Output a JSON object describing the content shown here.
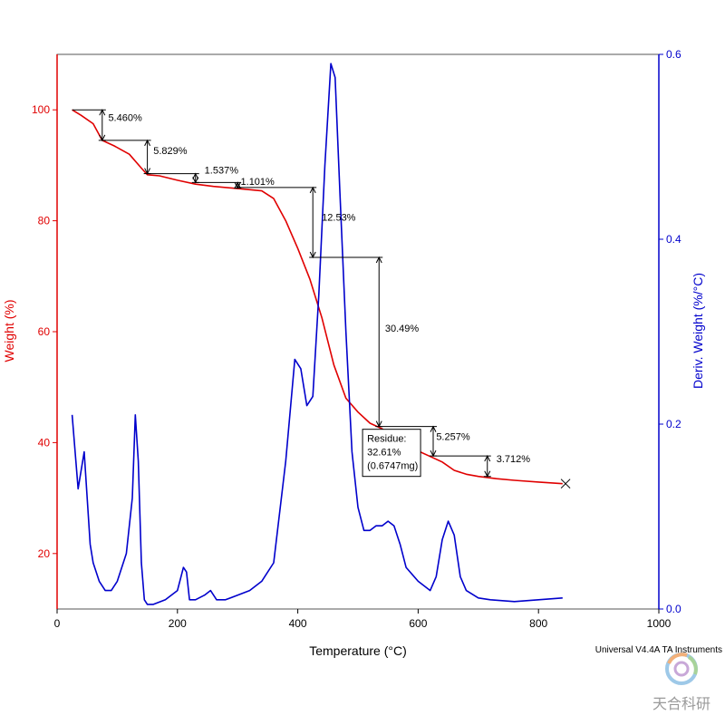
{
  "chart_data": {
    "type": "line",
    "xlabel": "Temperature (°C)",
    "ylabel_left": "Weight (%)",
    "ylabel_right": "Deriv. Weight (%/°C)",
    "xlim": [
      0,
      1000
    ],
    "ylim_left": [
      10,
      110
    ],
    "ylim_right": [
      0.0,
      0.6
    ],
    "x_ticks": [
      0,
      200,
      400,
      600,
      800,
      1000
    ],
    "y_left_ticks": [
      20,
      40,
      60,
      80,
      100
    ],
    "y_right_ticks": [
      0.0,
      0.2,
      0.4,
      0.6
    ],
    "colors": {
      "weight": "#e00000",
      "deriv": "#0000cc",
      "frame": "#555555",
      "annotation": "#000000"
    },
    "series": [
      {
        "axis": "left",
        "x": [
          25,
          40,
          60,
          75,
          95,
          120,
          140,
          150,
          170,
          200,
          230,
          260,
          300,
          340,
          360,
          380,
          400,
          420,
          440,
          460,
          480,
          500,
          520,
          540,
          560,
          580,
          600,
          620,
          640,
          660,
          680,
          700,
          730,
          760,
          800,
          840
        ],
        "y": [
          100,
          99,
          97.5,
          94.5,
          93.5,
          92,
          89.5,
          88.3,
          88.1,
          87.3,
          86.6,
          86.2,
          85.8,
          85.4,
          84,
          80,
          75,
          69.5,
          62.5,
          54,
          48,
          45.5,
          43.5,
          42.5,
          41,
          39.5,
          38.5,
          37.5,
          36.5,
          35,
          34.3,
          33.9,
          33.5,
          33.2,
          32.9,
          32.6
        ]
      },
      {
        "axis": "right",
        "x": [
          25,
          35,
          45,
          55,
          60,
          70,
          80,
          90,
          100,
          115,
          125,
          130,
          135,
          140,
          145,
          150,
          160,
          180,
          200,
          210,
          215,
          220,
          230,
          245,
          255,
          265,
          280,
          300,
          320,
          340,
          360,
          380,
          395,
          405,
          415,
          425,
          435,
          445,
          455,
          462,
          470,
          480,
          490,
          500,
          510,
          520,
          530,
          540,
          550,
          560,
          570,
          580,
          600,
          620,
          630,
          640,
          650,
          660,
          670,
          680,
          700,
          720,
          760,
          800,
          840
        ],
        "y": [
          0.21,
          0.13,
          0.17,
          0.07,
          0.05,
          0.03,
          0.02,
          0.02,
          0.03,
          0.06,
          0.12,
          0.21,
          0.16,
          0.05,
          0.01,
          0.005,
          0.005,
          0.01,
          0.02,
          0.045,
          0.04,
          0.01,
          0.01,
          0.015,
          0.02,
          0.01,
          0.01,
          0.015,
          0.02,
          0.03,
          0.05,
          0.16,
          0.27,
          0.26,
          0.22,
          0.23,
          0.34,
          0.48,
          0.59,
          0.575,
          0.45,
          0.3,
          0.17,
          0.11,
          0.085,
          0.085,
          0.09,
          0.09,
          0.095,
          0.09,
          0.07,
          0.045,
          0.03,
          0.02,
          0.035,
          0.075,
          0.095,
          0.08,
          0.035,
          0.02,
          0.012,
          0.01,
          0.008,
          0.01,
          0.012
        ]
      }
    ],
    "annotations": [
      {
        "label": "5.460%",
        "x_from": 25,
        "x_to": 75,
        "y_top": 100,
        "y_bottom": 94.5,
        "arrow_x": 75,
        "text_x": 85,
        "text_y": 98
      },
      {
        "label": "5.829%",
        "x_from": 75,
        "x_to": 150,
        "y_top": 94.5,
        "y_bottom": 88.5,
        "arrow_x": 150,
        "text_x": 160,
        "text_y": 92
      },
      {
        "label": "1.537%",
        "x_from": 150,
        "x_to": 230,
        "y_top": 88.5,
        "y_bottom": 86.9,
        "arrow_x": 230,
        "text_x": 245,
        "text_y": 88.5
      },
      {
        "label": "1.101%",
        "x_from": 230,
        "x_to": 300,
        "y_top": 86.9,
        "y_bottom": 85.9,
        "arrow_x": 300,
        "text_x": 305,
        "text_y": 86.5
      },
      {
        "label": "12.53%",
        "x_from": 300,
        "x_to": 425,
        "y_top": 86,
        "y_bottom": 73.4,
        "arrow_x": 425,
        "text_x": 440,
        "text_y": 80
      },
      {
        "label": "30.49%",
        "x_from": 425,
        "x_to": 535,
        "y_top": 73.4,
        "y_bottom": 42.9,
        "arrow_x": 535,
        "text_x": 545,
        "text_y": 60
      },
      {
        "label": "5.257%",
        "x_from": 535,
        "x_to": 625,
        "y_top": 42.9,
        "y_bottom": 37.6,
        "arrow_x": 625,
        "text_x": 630,
        "text_y": 40.5
      },
      {
        "label": "3.712%",
        "x_from": 625,
        "x_to": 715,
        "y_top": 37.6,
        "y_bottom": 33.9,
        "arrow_x": 715,
        "text_x": 730,
        "text_y": 36.5
      }
    ],
    "residue": {
      "lines": [
        "Residue:",
        "32.61%",
        "(0.6747mg)"
      ],
      "x": 845,
      "y": 32.6
    }
  },
  "footer": {
    "instrument": "Universal V4.4A TA Instruments",
    "watermark": "天合科研"
  }
}
